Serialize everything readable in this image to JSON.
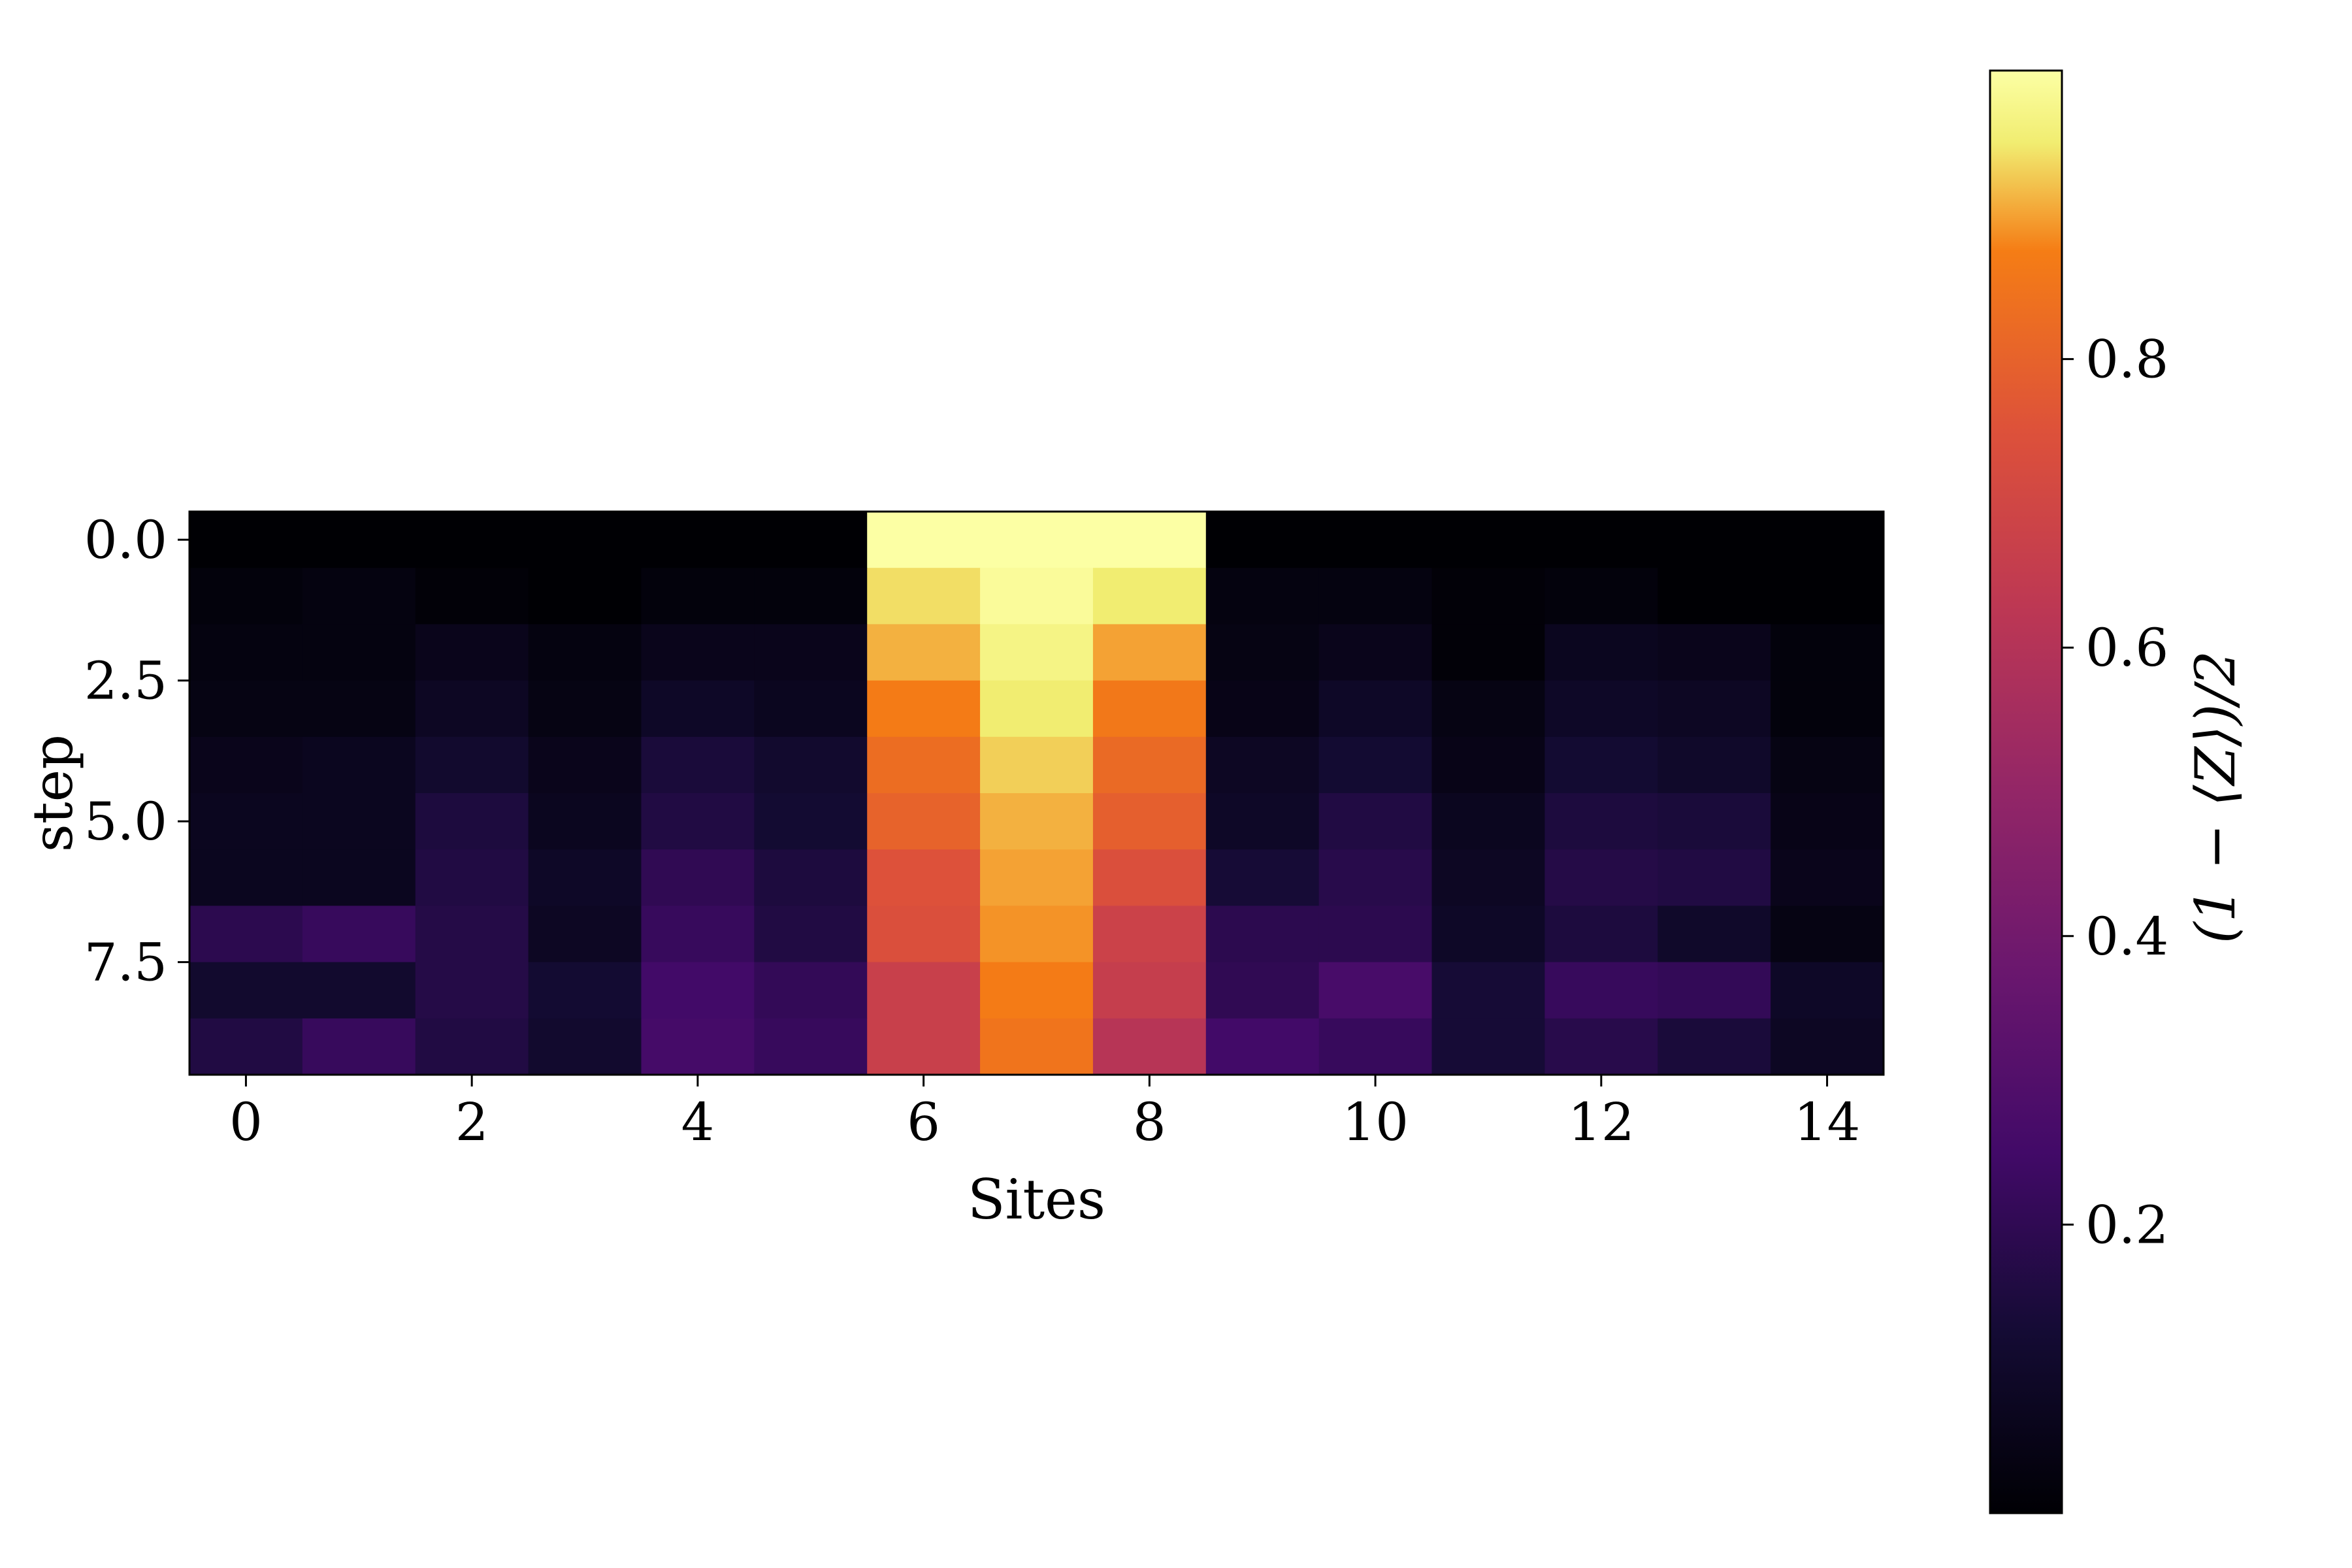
{
  "chart_data": {
    "type": "heatmap",
    "colormap": "inferno",
    "xlabel": "Sites",
    "ylabel": "step",
    "colorbar_label": "(1 − ⟨Z⟩)/2",
    "x_ticks": [
      "0",
      "2",
      "4",
      "6",
      "8",
      "10",
      "12",
      "14"
    ],
    "y_ticks": [
      "0.0",
      "2.5",
      "5.0",
      "7.5"
    ],
    "colorbar_ticks": [
      "0.2",
      "0.4",
      "0.6",
      "0.8"
    ],
    "color_range": [
      0.0,
      1.0
    ],
    "rows": 10,
    "cols": 15,
    "values": [
      [
        0.0,
        0.0,
        0.0,
        0.0,
        0.0,
        0.0,
        1.0,
        1.0,
        1.0,
        0.0,
        0.0,
        0.0,
        0.0,
        0.0,
        0.0
      ],
      [
        0.02,
        0.03,
        0.01,
        0.0,
        0.02,
        0.02,
        0.94,
        0.99,
        0.95,
        0.03,
        0.03,
        0.01,
        0.02,
        0.0,
        0.0
      ],
      [
        0.03,
        0.03,
        0.06,
        0.03,
        0.06,
        0.06,
        0.91,
        0.97,
        0.9,
        0.04,
        0.06,
        0.01,
        0.07,
        0.06,
        0.02
      ],
      [
        0.04,
        0.04,
        0.08,
        0.04,
        0.09,
        0.07,
        0.87,
        0.95,
        0.86,
        0.05,
        0.09,
        0.04,
        0.09,
        0.08,
        0.02
      ],
      [
        0.06,
        0.07,
        0.11,
        0.06,
        0.14,
        0.11,
        0.83,
        0.93,
        0.82,
        0.08,
        0.12,
        0.05,
        0.12,
        0.1,
        0.04
      ],
      [
        0.07,
        0.07,
        0.15,
        0.07,
        0.16,
        0.12,
        0.8,
        0.91,
        0.79,
        0.09,
        0.16,
        0.07,
        0.15,
        0.14,
        0.05
      ],
      [
        0.07,
        0.07,
        0.16,
        0.09,
        0.2,
        0.15,
        0.75,
        0.9,
        0.74,
        0.13,
        0.18,
        0.08,
        0.17,
        0.16,
        0.06
      ],
      [
        0.19,
        0.22,
        0.17,
        0.08,
        0.22,
        0.16,
        0.74,
        0.89,
        0.68,
        0.19,
        0.19,
        0.09,
        0.15,
        0.1,
        0.04
      ],
      [
        0.11,
        0.11,
        0.17,
        0.12,
        0.25,
        0.21,
        0.67,
        0.87,
        0.66,
        0.2,
        0.27,
        0.13,
        0.22,
        0.21,
        0.09
      ],
      [
        0.16,
        0.22,
        0.16,
        0.11,
        0.26,
        0.22,
        0.67,
        0.85,
        0.61,
        0.25,
        0.22,
        0.13,
        0.18,
        0.14,
        0.08
      ]
    ]
  }
}
